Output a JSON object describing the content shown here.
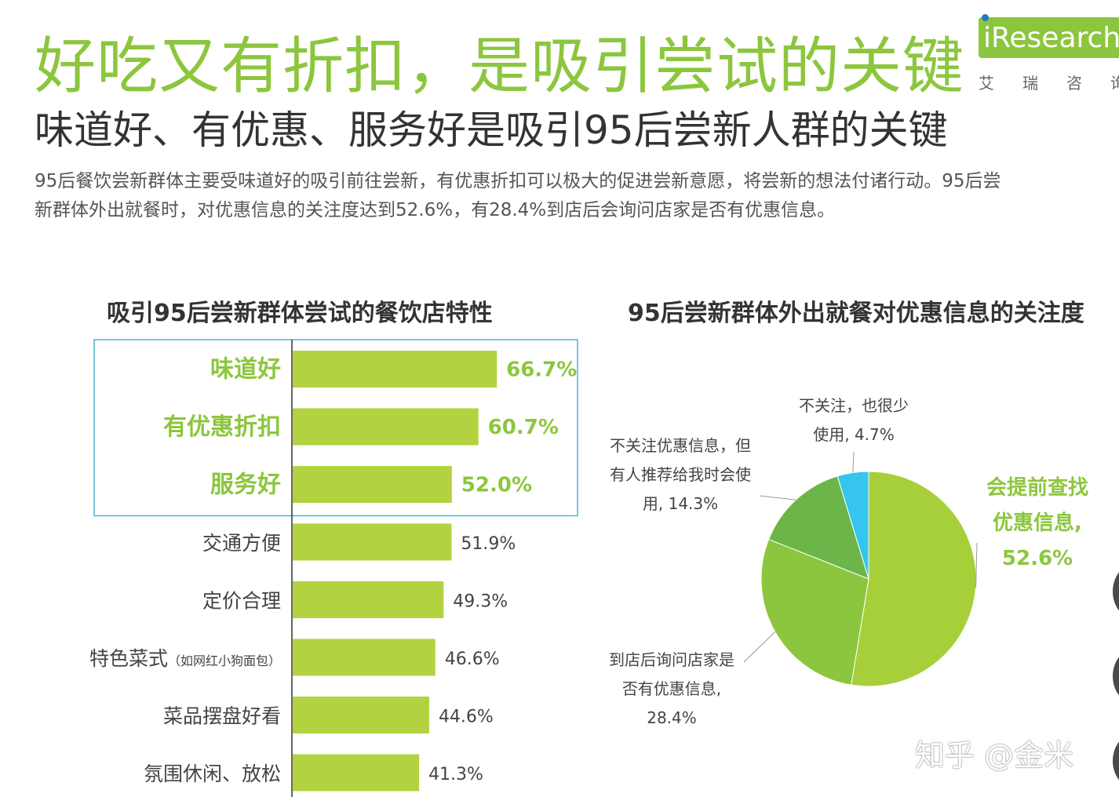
{
  "header": {
    "title": "好吃又有折扣，是吸引尝试的关键",
    "subtitle": "味道好、有优惠、服务好是吸引95后尝新人群的关键",
    "desc_line1": "95后餐饮尝新群体主要受味道好的吸引前往尝新，有优惠折扣可以极大的促进尝新意愿，将尝新的想法付诸行动。95后尝",
    "desc_line2": "新群体外出就餐时，对优惠信息的关注度达到52.6%，有28.4%到店后会询问店家是否有优惠信息。"
  },
  "logo": {
    "text": "iResearch",
    "sub": "艾瑞咨询"
  },
  "watermark": "知乎 @金米",
  "colors": {
    "brand_green": "#8cc63e",
    "bar_green": "#b2d23f",
    "highlight_green": "#8cc63e",
    "pie_dark_green": "#6cb548",
    "pie_mid_green": "#8cc63e",
    "pie_light_green": "#a6cf3a",
    "pie_cyan": "#35c5ee",
    "highlight_box": "#4bb3d8"
  },
  "chart_data": [
    {
      "type": "bar",
      "orientation": "horizontal",
      "title": "吸引95后尝新群体尝试的餐饮店特性",
      "categories": [
        "味道好",
        "有优惠折扣",
        "服务好",
        "交通方便",
        "定价合理",
        "特色菜式",
        "菜品摆盘好看",
        "氛围休闲、放松"
      ],
      "category_notes": [
        "",
        "",
        "",
        "",
        "",
        "（如网红小狗面包）",
        "",
        ""
      ],
      "values": [
        66.7,
        60.7,
        52.0,
        51.9,
        49.3,
        46.6,
        44.6,
        41.3
      ],
      "value_labels": [
        "66.7%",
        "60.7%",
        "52.0%",
        "51.9%",
        "49.3%",
        "46.6%",
        "44.6%",
        "41.3%"
      ],
      "highlighted": [
        true,
        true,
        true,
        false,
        false,
        false,
        false,
        false
      ],
      "unit": "%"
    },
    {
      "type": "pie",
      "title": "95后尝新群体外出就餐对优惠信息的关注度",
      "slices": [
        {
          "label_lines": [
            "会提前查找",
            "优惠信息,",
            "52.6%"
          ],
          "value": 52.6,
          "color": "#a6cf3a",
          "highlight": true
        },
        {
          "label_lines": [
            "到店后询问店家是",
            "否有优惠信息,",
            "28.4%"
          ],
          "value": 28.4,
          "color": "#8cc63e",
          "highlight": false
        },
        {
          "label_lines": [
            "不关注优惠信息，但",
            "有人推荐给我时会使",
            "用, 14.3%"
          ],
          "value": 14.3,
          "color": "#6cb548",
          "highlight": false
        },
        {
          "label_lines": [
            "不关注，也很少",
            "使用, 4.7%"
          ],
          "value": 4.7,
          "color": "#35c5ee",
          "highlight": false
        }
      ]
    }
  ]
}
